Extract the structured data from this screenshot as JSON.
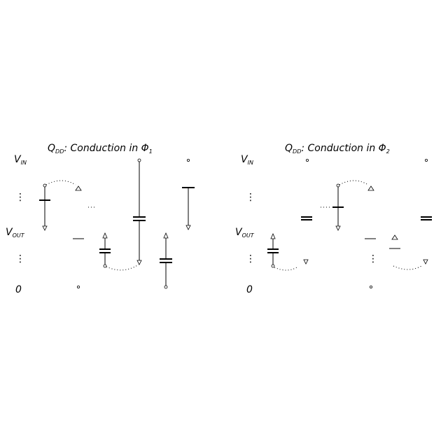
{
  "panels": [
    {
      "title": {
        "q": "Q",
        "sub": "DD",
        "rest": ": Conduction in Φ",
        "phi_sub": "1"
      },
      "labels": {
        "vin": "V",
        "vin_sub": "IN",
        "vout": "V",
        "vout_sub": "OUT",
        "zero": "0"
      }
    },
    {
      "title": {
        "q": "Q",
        "sub": "DD",
        "rest": ": Conduction in Φ",
        "phi_sub": "2"
      },
      "labels": {
        "vin": "V",
        "vin_sub": "IN",
        "vout": "V",
        "vout_sub": "OUT",
        "zero": "0"
      }
    }
  ],
  "vdots": "⋮"
}
